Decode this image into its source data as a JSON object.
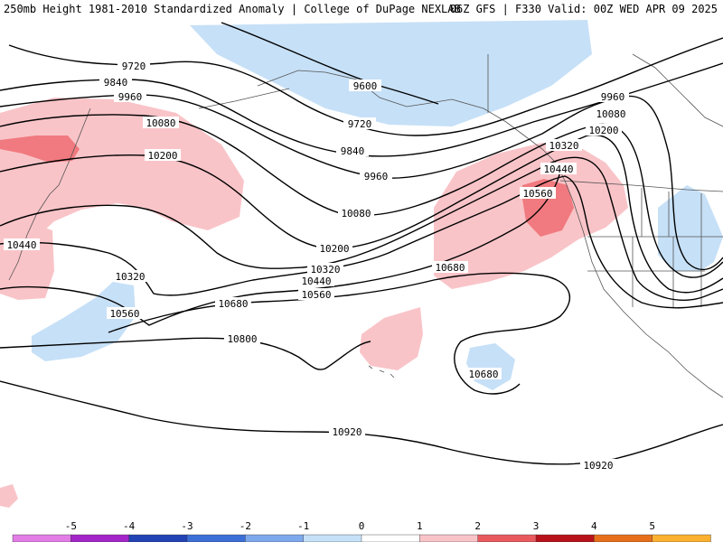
{
  "header": {
    "title_left": "250mb Height 1981-2010 Standardized Anomaly | College of DuPage NEXLAB",
    "title_right": "06Z GFS | F330 Valid: 00Z WED APR 09 2025"
  },
  "contours": {
    "color": "#000000",
    "labels": [
      "9600",
      "9720",
      "9720",
      "9840",
      "9840",
      "9960",
      "9960",
      "9960",
      "10080",
      "10080",
      "10080",
      "10200",
      "10200",
      "10200",
      "10320",
      "10320",
      "10320",
      "10440",
      "10440",
      "10440",
      "10560",
      "10560",
      "10560",
      "10680",
      "10680",
      "10680",
      "10800",
      "10920",
      "10920"
    ]
  },
  "anomaly_colors": {
    "pos1": "#f9c4c8",
    "pos2": "#f07a7f",
    "neg1": "#c6e0f7"
  },
  "colorbar": {
    "ticks": [
      "-5",
      "-4",
      "-3",
      "-2",
      "-1",
      "0",
      "1",
      "2",
      "3",
      "4",
      "5"
    ],
    "bins": [
      "#e27de6",
      "#a326c9",
      "#2143b4",
      "#3c6fd6",
      "#7ea8ec",
      "#c6e0f7",
      "#ffffff",
      "#f9c4c8",
      "#e95a5f",
      "#b8111a",
      "#e76f1a",
      "#fbb12f"
    ]
  }
}
